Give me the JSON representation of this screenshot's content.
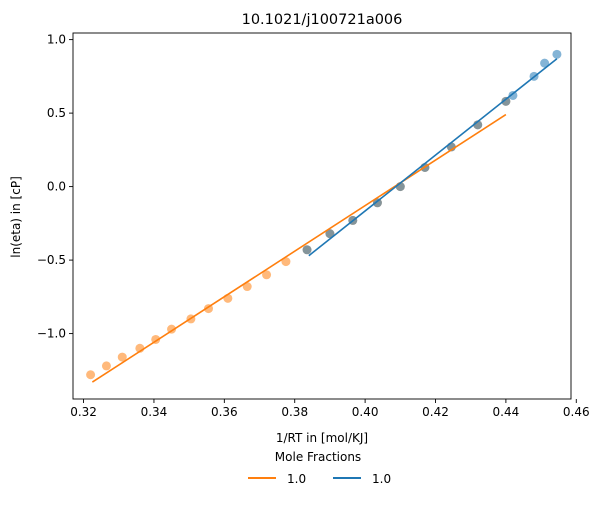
{
  "chart_data": {
    "type": "scatter",
    "title": "10.1021/j100721a006",
    "xlabel": "1/RT in [mol/KJ]",
    "ylabel": "ln(eta) in [cP]",
    "xlim": [
      0.317,
      0.4585
    ],
    "ylim": [
      -1.445,
      1.045
    ],
    "xticks": [
      0.32,
      0.34,
      0.36,
      0.38,
      0.4,
      0.42,
      0.44,
      0.46
    ],
    "xtick_labels": [
      "0.32",
      "0.34",
      "0.36",
      "0.38",
      "0.40",
      "0.42",
      "0.44",
      "0.46"
    ],
    "yticks": [
      -1.0,
      -0.5,
      0.0,
      0.5,
      1.0
    ],
    "ytick_labels": [
      "−1.0",
      "−0.5",
      "0.0",
      "0.5",
      "1.0"
    ],
    "grid": false,
    "legend": {
      "title": "Mole Fractions",
      "placement": "below plot, centered"
    },
    "series": [
      {
        "name": "1.0",
        "color": "#ff7f0e",
        "points": [
          [
            0.322,
            -1.28
          ],
          [
            0.3265,
            -1.22
          ],
          [
            0.331,
            -1.16
          ],
          [
            0.336,
            -1.1
          ],
          [
            0.3405,
            -1.04
          ],
          [
            0.345,
            -0.97
          ],
          [
            0.3505,
            -0.9
          ],
          [
            0.3555,
            -0.83
          ],
          [
            0.361,
            -0.76
          ],
          [
            0.3665,
            -0.68
          ],
          [
            0.372,
            -0.6
          ],
          [
            0.3775,
            -0.51
          ],
          [
            0.3835,
            -0.43
          ],
          [
            0.39,
            -0.32
          ],
          [
            0.3965,
            -0.23
          ],
          [
            0.4035,
            -0.11
          ],
          [
            0.41,
            0.0
          ],
          [
            0.417,
            0.13
          ],
          [
            0.4245,
            0.27
          ],
          [
            0.432,
            0.42
          ],
          [
            0.44,
            0.58
          ]
        ],
        "fit": [
          [
            0.3225,
            -1.33
          ],
          [
            0.44,
            0.49
          ]
        ]
      },
      {
        "name": "1.0",
        "color": "#1f77b4",
        "points": [
          [
            0.3835,
            -0.43
          ],
          [
            0.39,
            -0.32
          ],
          [
            0.3965,
            -0.23
          ],
          [
            0.4035,
            -0.11
          ],
          [
            0.41,
            0.0
          ],
          [
            0.417,
            0.13
          ],
          [
            0.4245,
            0.27
          ],
          [
            0.432,
            0.42
          ],
          [
            0.44,
            0.58
          ],
          [
            0.442,
            0.62
          ],
          [
            0.448,
            0.75
          ],
          [
            0.451,
            0.84
          ],
          [
            0.4545,
            0.9
          ]
        ],
        "fit": [
          [
            0.384,
            -0.47
          ],
          [
            0.4545,
            0.87
          ]
        ]
      }
    ]
  }
}
